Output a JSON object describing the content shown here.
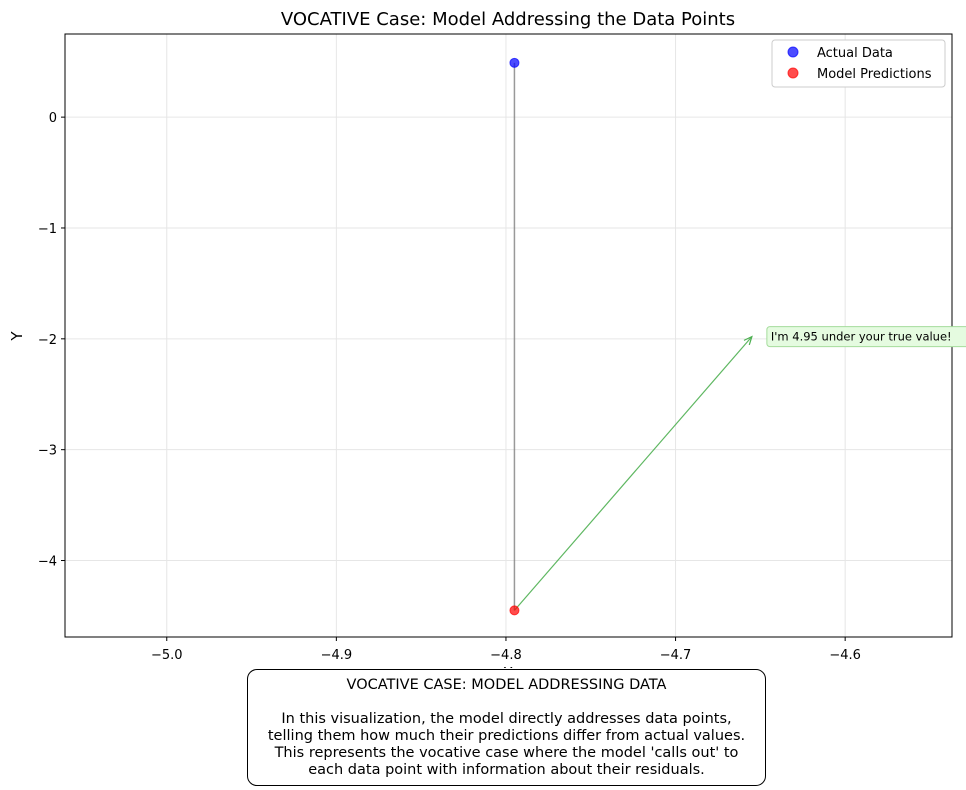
{
  "chart_data": {
    "type": "scatter",
    "title": "VOCATIVE Case: Model Addressing the Data Points",
    "xlabel": "X",
    "ylabel": "Y",
    "xlim": [
      -5.06,
      -4.537
    ],
    "ylim": [
      -4.69,
      0.75
    ],
    "grid": true,
    "legend_position": "upper-right",
    "x_ticks": [
      -5.0,
      -4.9,
      -4.8,
      -4.7,
      -4.6
    ],
    "x_tick_labels": [
      "−5.0",
      "−4.9",
      "−4.8",
      "−4.7",
      "−4.6"
    ],
    "y_ticks": [
      0,
      -1,
      -2,
      -3,
      -4
    ],
    "y_tick_labels": [
      "0",
      "−1",
      "−2",
      "−3",
      "−4"
    ],
    "series": [
      {
        "name": "Actual Data",
        "color": "#0000ff",
        "points": [
          {
            "x": -4.795,
            "y": 0.49
          }
        ]
      },
      {
        "name": "Model Predictions",
        "color": "#ff0000",
        "points": [
          {
            "x": -4.795,
            "y": -4.45
          }
        ]
      }
    ],
    "residual_lines": [
      {
        "x": -4.795,
        "y1": 0.49,
        "y2": -4.45,
        "color": "#808080"
      }
    ],
    "annotations": [
      {
        "text": "I'm 4.95 under your true value!",
        "from": {
          "x": -4.795,
          "y": -4.45
        },
        "to": {
          "x": -4.655,
          "y": -1.98
        },
        "color": "#4caf50",
        "background": "#e5fbe0"
      }
    ]
  },
  "caption": {
    "heading": "VOCATIVE CASE: MODEL ADDRESSING DATA",
    "lines": [
      "In this visualization, the model directly addresses data points,",
      "telling them how much their predictions differ from actual values.",
      "This represents the vocative case where the model 'calls out' to",
      "each data point with information about their residuals."
    ]
  }
}
